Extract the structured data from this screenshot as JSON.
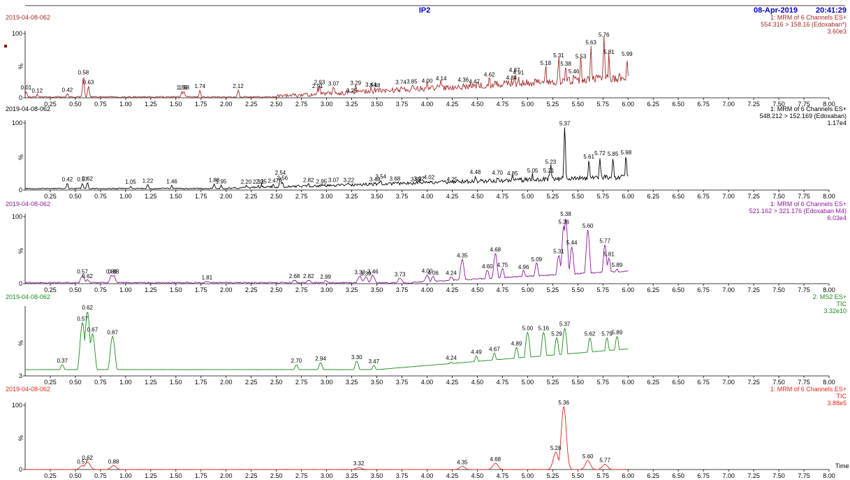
{
  "header": {
    "title": "IP2",
    "date": "08-Apr-2019",
    "time": "20:41:29",
    "title_color": "#0000cc"
  },
  "x_axis": {
    "min": 0,
    "max": 8,
    "ticks": [
      "0.25",
      "0.50",
      "0.75",
      "1.00",
      "1.25",
      "1.50",
      "1.75",
      "2.00",
      "2.25",
      "2.50",
      "2.75",
      "3.00",
      "3.25",
      "3.50",
      "3.75",
      "4.00",
      "4.25",
      "4.50",
      "4.75",
      "5.00",
      "5.25",
      "5.50",
      "5.75",
      "6.00",
      "6.25",
      "6.50",
      "6.75",
      "7.00",
      "7.25",
      "7.50",
      "7.75",
      "8.00"
    ],
    "time_label": "Time"
  },
  "chart_data": [
    {
      "type": "line",
      "sample": "2019-04-08-062",
      "channel": "1: MRM of 6 Channels ES+",
      "transition": "554.316 > 158.16 (Edoxaban*)",
      "intensity": "3.60e3",
      "color": "#a52a2a",
      "ylabel": "%",
      "yticks": [
        "0",
        "100"
      ],
      "ylim": [
        0,
        100
      ],
      "peaks": [
        {
          "t": "0.01",
          "x": 0.01,
          "y": 10
        },
        {
          "t": "0.12",
          "x": 0.12,
          "y": 5
        },
        {
          "t": "0.42",
          "x": 0.42,
          "y": 6
        },
        {
          "t": "0.58",
          "x": 0.58,
          "y": 33
        },
        {
          "t": "0.63",
          "x": 0.63,
          "y": 18
        },
        {
          "t": "1.56",
          "x": 1.56,
          "y": 10
        },
        {
          "t": "1.58",
          "x": 1.58,
          "y": 10
        },
        {
          "t": "1.74",
          "x": 1.74,
          "y": 12
        },
        {
          "t": "2.12",
          "x": 2.12,
          "y": 12
        },
        {
          "t": "2.91",
          "x": 2.91,
          "y": 12
        },
        {
          "t": "2.93",
          "x": 2.93,
          "y": 18
        },
        {
          "t": "3.07",
          "x": 3.07,
          "y": 16
        },
        {
          "t": "3.25",
          "x": 3.25,
          "y": 5
        },
        {
          "t": "3.29",
          "x": 3.29,
          "y": 17
        },
        {
          "t": "3.44",
          "x": 3.44,
          "y": 14
        },
        {
          "t": "3.48",
          "x": 3.48,
          "y": 13
        },
        {
          "t": "3.74",
          "x": 3.74,
          "y": 18
        },
        {
          "t": "3.85",
          "x": 3.85,
          "y": 19
        },
        {
          "t": "4.00",
          "x": 4.0,
          "y": 20
        },
        {
          "t": "4.14",
          "x": 4.14,
          "y": 24
        },
        {
          "t": "4.36",
          "x": 4.36,
          "y": 22
        },
        {
          "t": "4.47",
          "x": 4.47,
          "y": 19
        },
        {
          "t": "4.62",
          "x": 4.62,
          "y": 30
        },
        {
          "t": "4.84",
          "x": 4.84,
          "y": 25
        },
        {
          "t": "4.87",
          "x": 4.87,
          "y": 37
        },
        {
          "t": "4.91",
          "x": 4.91,
          "y": 33
        },
        {
          "t": "5.18",
          "x": 5.18,
          "y": 48
        },
        {
          "t": "5.31",
          "x": 5.31,
          "y": 60
        },
        {
          "t": "5.38",
          "x": 5.38,
          "y": 47
        },
        {
          "t": "5.46",
          "x": 5.46,
          "y": 35
        },
        {
          "t": "5.53",
          "x": 5.53,
          "y": 58
        },
        {
          "t": "5.63",
          "x": 5.63,
          "y": 80
        },
        {
          "t": "5.76",
          "x": 5.76,
          "y": 92
        },
        {
          "t": "5.81",
          "x": 5.81,
          "y": 65
        },
        {
          "t": "5.99",
          "x": 5.99,
          "y": 62
        }
      ]
    },
    {
      "type": "line",
      "sample": "2019-04-08-062",
      "channel": "1: MRM of 6 Channels ES+",
      "transition": "548.212 > 152.169 (Edoxaban)",
      "intensity": "1.17e4",
      "color": "#000000",
      "ylabel": "%",
      "yticks": [
        "0",
        "100"
      ],
      "ylim": [
        0,
        100
      ],
      "peaks": [
        {
          "t": "0.42",
          "x": 0.42,
          "y": 10
        },
        {
          "t": "0.57",
          "x": 0.57,
          "y": 10
        },
        {
          "t": "0.62",
          "x": 0.62,
          "y": 11
        },
        {
          "t": "1.05",
          "x": 1.05,
          "y": 6
        },
        {
          "t": "1.22",
          "x": 1.22,
          "y": 8
        },
        {
          "t": "1.46",
          "x": 1.46,
          "y": 7
        },
        {
          "t": "1.88",
          "x": 1.88,
          "y": 9
        },
        {
          "t": "1.95",
          "x": 1.95,
          "y": 7
        },
        {
          "t": "2.20",
          "x": 2.2,
          "y": 6
        },
        {
          "t": "2.32",
          "x": 2.32,
          "y": 6
        },
        {
          "t": "2.35",
          "x": 2.35,
          "y": 7
        },
        {
          "t": "2.47",
          "x": 2.47,
          "y": 8
        },
        {
          "t": "2.54",
          "x": 2.54,
          "y": 20
        },
        {
          "t": "2.56",
          "x": 2.56,
          "y": 12
        },
        {
          "t": "2.82",
          "x": 2.82,
          "y": 9
        },
        {
          "t": "2.95",
          "x": 2.95,
          "y": 7
        },
        {
          "t": "3.07",
          "x": 3.07,
          "y": 9
        },
        {
          "t": "3.22",
          "x": 3.22,
          "y": 9
        },
        {
          "t": "3.48",
          "x": 3.48,
          "y": 10
        },
        {
          "t": "3.54",
          "x": 3.54,
          "y": 14
        },
        {
          "t": "3.68",
          "x": 3.68,
          "y": 11
        },
        {
          "t": "3.89",
          "x": 3.89,
          "y": 10
        },
        {
          "t": "3.92",
          "x": 3.92,
          "y": 11
        },
        {
          "t": "4.02",
          "x": 4.02,
          "y": 13
        },
        {
          "t": "4.25",
          "x": 4.25,
          "y": 10
        },
        {
          "t": "4.48",
          "x": 4.48,
          "y": 21
        },
        {
          "t": "4.70",
          "x": 4.7,
          "y": 20
        },
        {
          "t": "4.85",
          "x": 4.85,
          "y": 19
        },
        {
          "t": "5.05",
          "x": 5.05,
          "y": 23
        },
        {
          "t": "5.21",
          "x": 5.21,
          "y": 23
        },
        {
          "t": "5.23",
          "x": 5.23,
          "y": 36
        },
        {
          "t": "5.37",
          "x": 5.37,
          "y": 93
        },
        {
          "t": "5.61",
          "x": 5.61,
          "y": 44
        },
        {
          "t": "5.72",
          "x": 5.72,
          "y": 49
        },
        {
          "t": "5.85",
          "x": 5.85,
          "y": 48
        },
        {
          "t": "5.98",
          "x": 5.98,
          "y": 50
        }
      ]
    },
    {
      "type": "line",
      "sample": "2019-04-08-062",
      "channel": "1: MRM of 6 Channels ES+",
      "transition": "521.162 > 321.176 (Edoxaban M4)",
      "intensity": "6.03e4",
      "color": "#8b1a9b",
      "ylabel": "%",
      "yticks": [
        "0",
        "100"
      ],
      "ylim": [
        0,
        100
      ],
      "peaks": [
        {
          "t": "0.57",
          "x": 0.57,
          "y": 12
        },
        {
          "t": "0.62",
          "x": 0.62,
          "y": 5
        },
        {
          "t": "0.86",
          "x": 0.86,
          "y": 12
        },
        {
          "t": "0.88",
          "x": 0.88,
          "y": 12
        },
        {
          "t": "1.81",
          "x": 1.81,
          "y": 3
        },
        {
          "t": "2.68",
          "x": 2.68,
          "y": 5
        },
        {
          "t": "2.82",
          "x": 2.82,
          "y": 5
        },
        {
          "t": "2.99",
          "x": 2.99,
          "y": 4
        },
        {
          "t": "3.33",
          "x": 3.33,
          "y": 11
        },
        {
          "t": "3.39",
          "x": 3.39,
          "y": 9
        },
        {
          "t": "3.46",
          "x": 3.46,
          "y": 12
        },
        {
          "t": "3.73",
          "x": 3.73,
          "y": 8
        },
        {
          "t": "4.00",
          "x": 4.0,
          "y": 13
        },
        {
          "t": "4.06",
          "x": 4.06,
          "y": 10
        },
        {
          "t": "4.24",
          "x": 4.24,
          "y": 10
        },
        {
          "t": "4.35",
          "x": 4.35,
          "y": 36
        },
        {
          "t": "4.60",
          "x": 4.6,
          "y": 20
        },
        {
          "t": "4.68",
          "x": 4.68,
          "y": 45
        },
        {
          "t": "4.75",
          "x": 4.75,
          "y": 22
        },
        {
          "t": "4.96",
          "x": 4.96,
          "y": 19
        },
        {
          "t": "5.09",
          "x": 5.09,
          "y": 30
        },
        {
          "t": "5.31",
          "x": 5.31,
          "y": 42
        },
        {
          "t": "5.36",
          "x": 5.36,
          "y": 86
        },
        {
          "t": "5.38",
          "x": 5.38,
          "y": 98
        },
        {
          "t": "5.44",
          "x": 5.44,
          "y": 55
        },
        {
          "t": "5.60",
          "x": 5.6,
          "y": 80
        },
        {
          "t": "5.77",
          "x": 5.77,
          "y": 58
        },
        {
          "t": "5.81",
          "x": 5.81,
          "y": 38
        },
        {
          "t": "5.89",
          "x": 5.89,
          "y": 22
        }
      ]
    },
    {
      "type": "line",
      "sample": "2019-04-08-062",
      "channel": "2: MS2 ES+",
      "transition": "TIC",
      "intensity": "3.32e10",
      "color": "#1a8c1a",
      "ylabel": "%",
      "yticks": [
        "3"
      ],
      "ylim": [
        3,
        100
      ],
      "peaks": [
        {
          "t": "0.37",
          "x": 0.37,
          "y": 19
        },
        {
          "t": "0.57",
          "x": 0.57,
          "y": 80
        },
        {
          "t": "0.62",
          "x": 0.62,
          "y": 96
        },
        {
          "t": "0.67",
          "x": 0.67,
          "y": 64
        },
        {
          "t": "0.87",
          "x": 0.87,
          "y": 60
        },
        {
          "t": "2.70",
          "x": 2.7,
          "y": 19
        },
        {
          "t": "2.94",
          "x": 2.94,
          "y": 22
        },
        {
          "t": "3.30",
          "x": 3.3,
          "y": 24
        },
        {
          "t": "3.47",
          "x": 3.47,
          "y": 18
        },
        {
          "t": "4.24",
          "x": 4.24,
          "y": 23
        },
        {
          "t": "4.49",
          "x": 4.49,
          "y": 32
        },
        {
          "t": "4.67",
          "x": 4.67,
          "y": 36
        },
        {
          "t": "4.89",
          "x": 4.89,
          "y": 44
        },
        {
          "t": "5.00",
          "x": 5.0,
          "y": 66
        },
        {
          "t": "5.16",
          "x": 5.16,
          "y": 66
        },
        {
          "t": "5.29",
          "x": 5.29,
          "y": 58
        },
        {
          "t": "5.37",
          "x": 5.37,
          "y": 72
        },
        {
          "t": "5.62",
          "x": 5.62,
          "y": 58
        },
        {
          "t": "5.79",
          "x": 5.79,
          "y": 58
        },
        {
          "t": "5.89",
          "x": 5.89,
          "y": 60
        }
      ]
    },
    {
      "type": "line",
      "sample": "2019-04-08-062",
      "channel": "1: MRM of 6 Channels ES+",
      "transition": "TIC",
      "intensity": "3.88e5",
      "color": "#e8241a",
      "ylabel": "%",
      "yticks": [
        "0",
        "100"
      ],
      "ylim": [
        0,
        100
      ],
      "peaks": [
        {
          "t": "0.57",
          "x": 0.57,
          "y": 6
        },
        {
          "t": "0.62",
          "x": 0.62,
          "y": 12
        },
        {
          "t": "0.88",
          "x": 0.88,
          "y": 6
        },
        {
          "t": "3.32",
          "x": 3.32,
          "y": 3
        },
        {
          "t": "4.35",
          "x": 4.35,
          "y": 5
        },
        {
          "t": "4.68",
          "x": 4.68,
          "y": 10
        },
        {
          "t": "5.28",
          "x": 5.28,
          "y": 27
        },
        {
          "t": "5.36",
          "x": 5.36,
          "y": 98
        },
        {
          "t": "5.60",
          "x": 5.6,
          "y": 14
        },
        {
          "t": "5.77",
          "x": 5.77,
          "y": 8
        }
      ]
    }
  ]
}
